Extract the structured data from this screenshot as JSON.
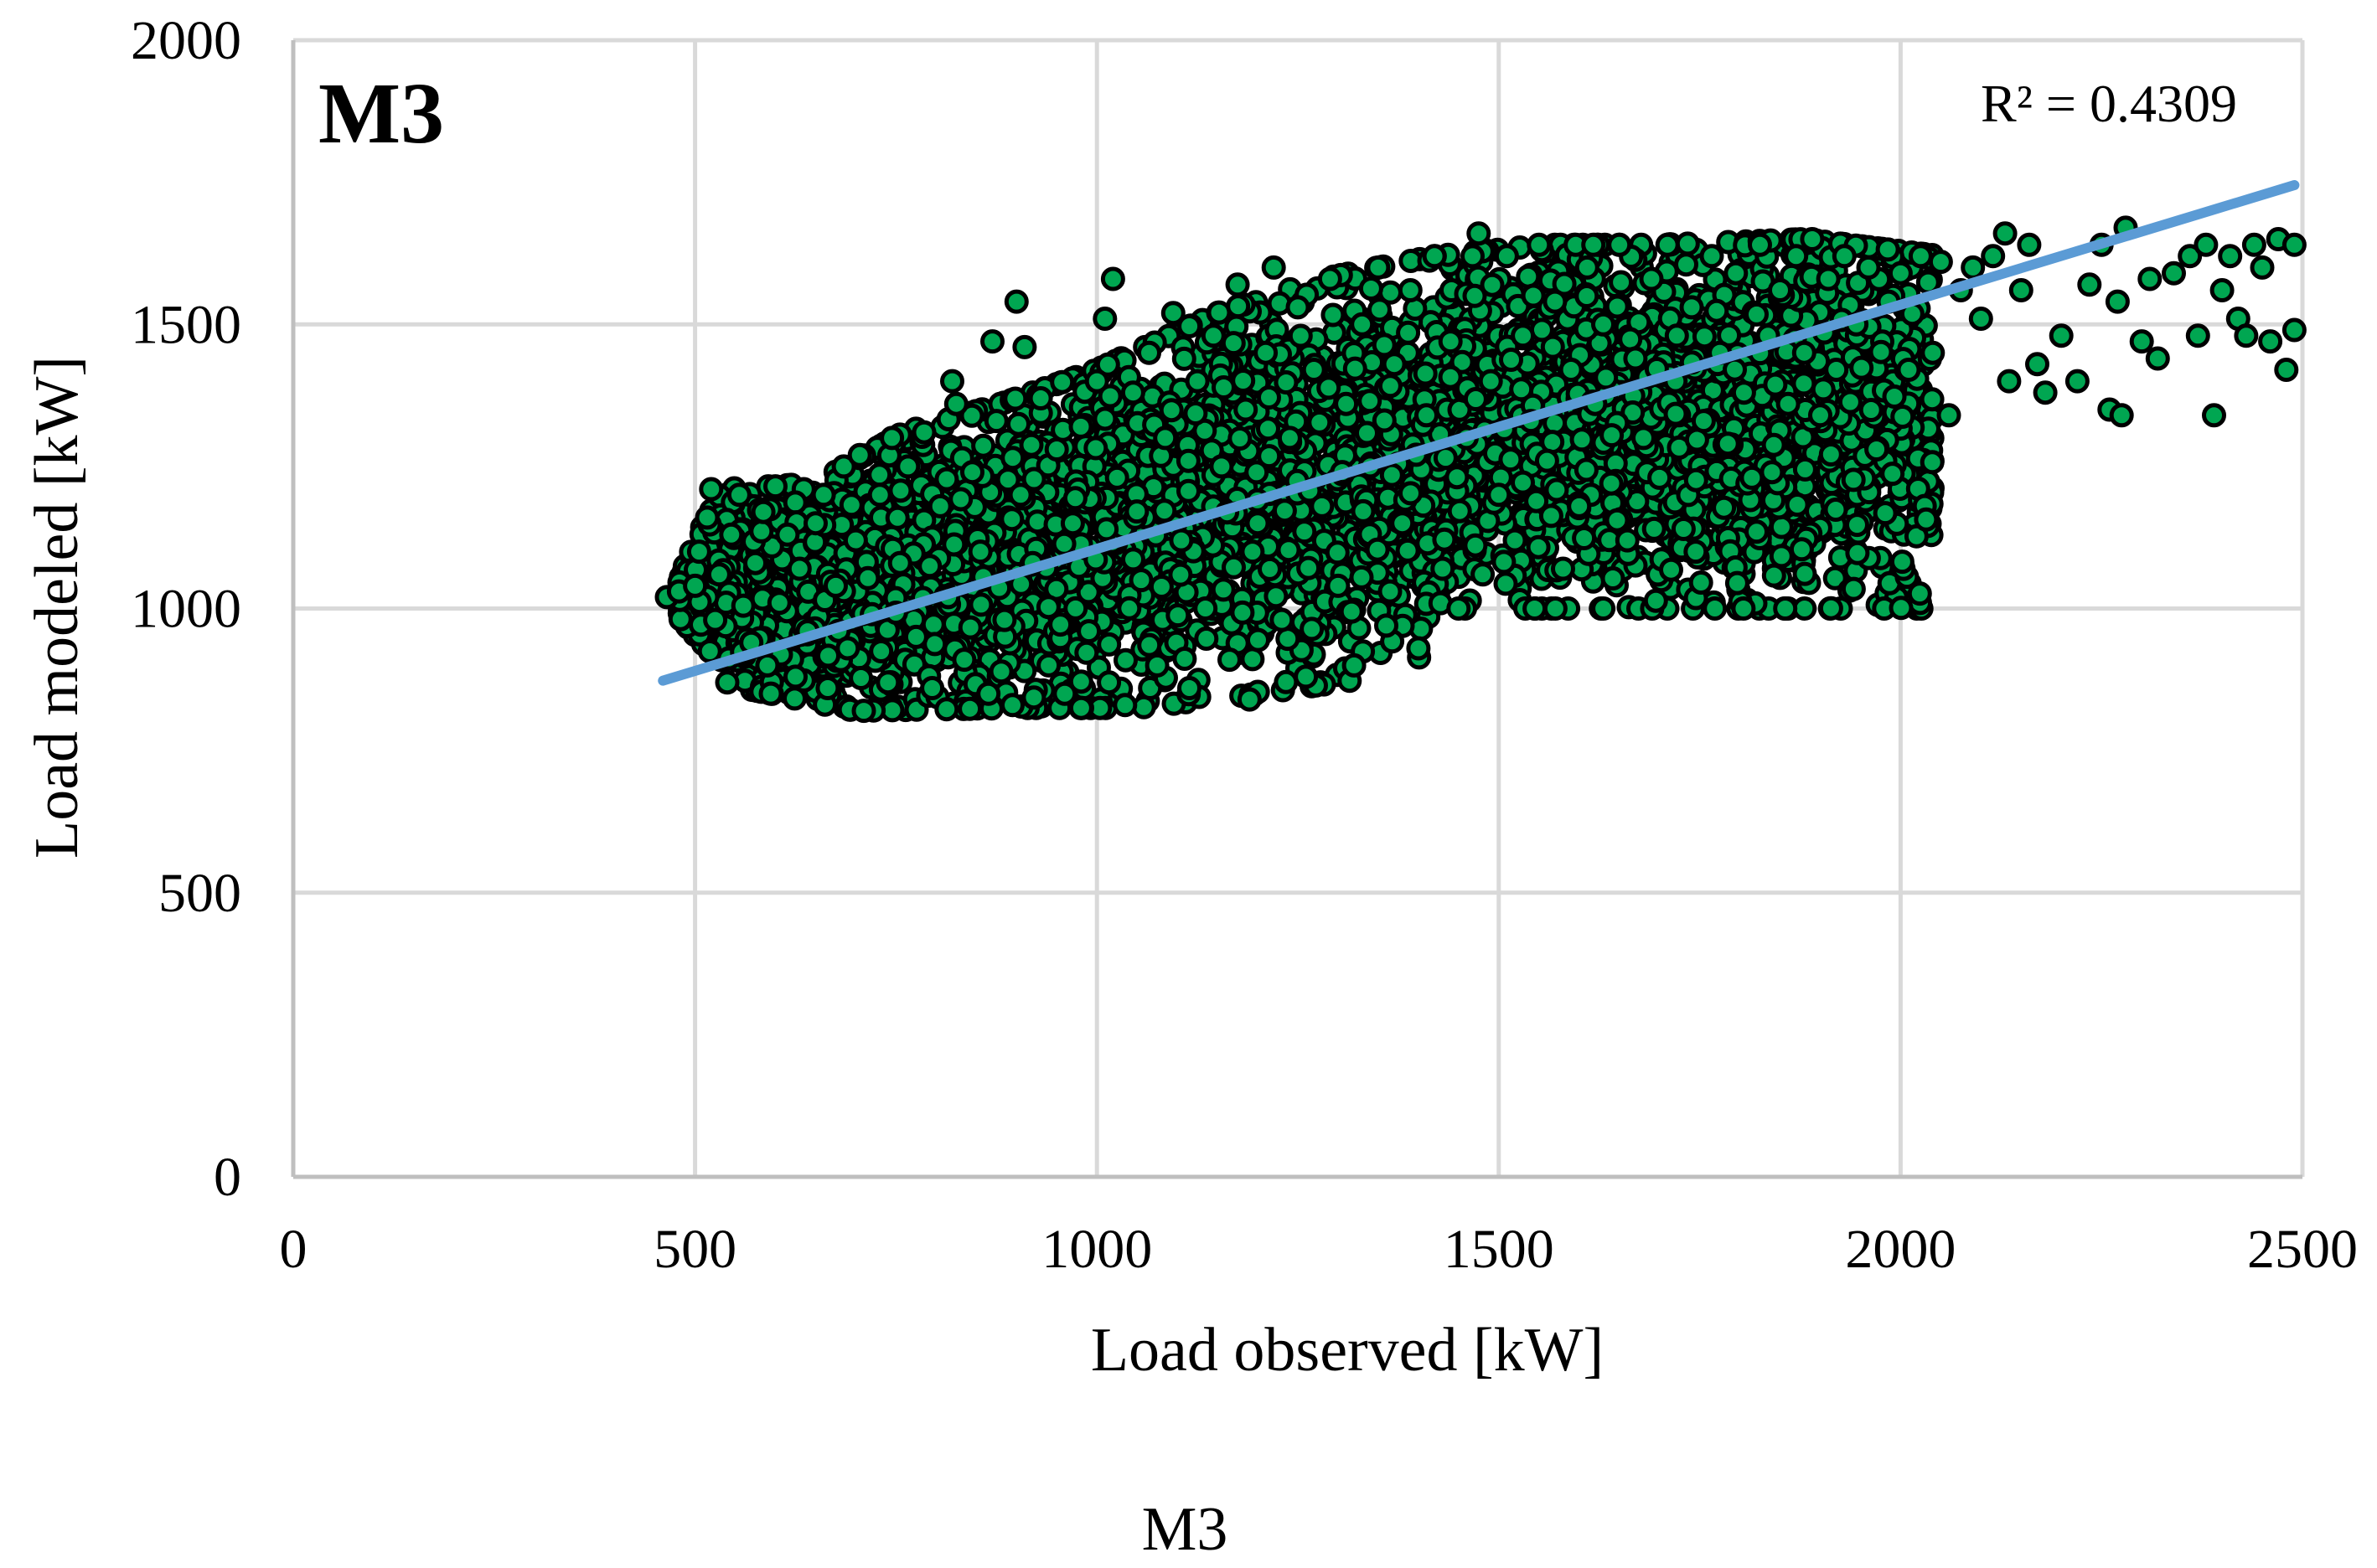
{
  "chart_data": {
    "type": "scatter",
    "title": "M3",
    "caption": "M3",
    "xlabel": "Load observed [kW]",
    "ylabel": "Load modeled [kW]",
    "xlim": [
      0,
      2500
    ],
    "ylim": [
      0,
      2000
    ],
    "xticks": [
      0,
      500,
      1000,
      1500,
      2000,
      2500
    ],
    "yticks": [
      0,
      500,
      1000,
      1500,
      2000
    ],
    "x_tick_labels": [
      "0",
      "500",
      "1000",
      "1500",
      "2000",
      "2500"
    ],
    "y_tick_labels": [
      "0",
      "500",
      "1000",
      "1500",
      "2000"
    ],
    "grid": true,
    "legend": "none",
    "r2_label": "R² = 0.4309",
    "trendline": {
      "type": "linear",
      "x": [
        460,
        2490
      ],
      "y": [
        873,
        1745
      ],
      "r_squared": 0.4309,
      "color": "#5b9bd5"
    },
    "series": [
      {
        "marker_fill": "#00a651",
        "marker_edge": "#000000",
        "description_of_cloud": {
          "lower_edge": [
            [
              470,
              1000
            ],
            [
              560,
              860
            ],
            [
              700,
              820
            ],
            [
              900,
              825
            ],
            [
              1050,
              825
            ],
            [
              1200,
              850
            ],
            [
              1350,
              880
            ],
            [
              1410,
              920
            ],
            [
              1440,
              1000
            ]
          ],
          "upper_edge": [
            [
              470,
              1020
            ],
            [
              530,
              1210
            ],
            [
              650,
              1220
            ],
            [
              760,
              1310
            ],
            [
              880,
              1360
            ],
            [
              1000,
              1420
            ],
            [
              1150,
              1520
            ],
            [
              1280,
              1580
            ],
            [
              1420,
              1620
            ],
            [
              1560,
              1640
            ],
            [
              1700,
              1640
            ],
            [
              1880,
              1650
            ],
            [
              2050,
              1620
            ],
            [
              2200,
              1640
            ],
            [
              2480,
              1640
            ]
          ]
        },
        "points": [
          [
            465,
            1020
          ],
          [
            480,
            1030
          ],
          [
            500,
            1040
          ],
          [
            505,
            1100
          ],
          [
            515,
            1160
          ],
          [
            520,
            1210
          ],
          [
            525,
            980
          ],
          [
            530,
            1060
          ],
          [
            540,
            870
          ],
          [
            545,
            1130
          ],
          [
            555,
            1200
          ],
          [
            560,
            1005
          ],
          [
            570,
            940
          ],
          [
            575,
            1080
          ],
          [
            585,
            1170
          ],
          [
            590,
            900
          ],
          [
            600,
            1215
          ],
          [
            605,
            1010
          ],
          [
            615,
            1130
          ],
          [
            625,
            880
          ],
          [
            630,
            1070
          ],
          [
            640,
            960
          ],
          [
            650,
            1150
          ],
          [
            660,
            1200
          ],
          [
            665,
            860
          ],
          [
            675,
            1040
          ],
          [
            685,
            1250
          ],
          [
            690,
            930
          ],
          [
            700,
            1120
          ],
          [
            705,
            1270
          ],
          [
            710,
            820
          ],
          [
            720,
            990
          ],
          [
            730,
            1200
          ],
          [
            740,
            870
          ],
          [
            745,
            1300
          ],
          [
            755,
            1080
          ],
          [
            765,
            1250
          ],
          [
            775,
            950
          ],
          [
            785,
            1310
          ],
          [
            795,
            860
          ],
          [
            805,
            1180
          ],
          [
            815,
            1020
          ],
          [
            820,
            1400
          ],
          [
            825,
            1360
          ],
          [
            835,
            910
          ],
          [
            845,
            1240
          ],
          [
            855,
            1100
          ],
          [
            865,
            850
          ],
          [
            870,
            1470
          ],
          [
            875,
            1330
          ],
          [
            885,
            980
          ],
          [
            895,
            830
          ],
          [
            900,
            1540
          ],
          [
            905,
            1200
          ],
          [
            910,
            1460
          ],
          [
            920,
            1080
          ],
          [
            930,
            1370
          ],
          [
            940,
            900
          ],
          [
            950,
            1280
          ],
          [
            960,
            850
          ],
          [
            970,
            1150
          ],
          [
            980,
            1320
          ],
          [
            990,
            960
          ],
          [
            1000,
            1400
          ],
          [
            1010,
            1510
          ],
          [
            1015,
            870
          ],
          [
            1020,
            1580
          ],
          [
            1025,
            1230
          ],
          [
            1035,
            830
          ],
          [
            1045,
            1380
          ],
          [
            1055,
            1050
          ],
          [
            1065,
            1450
          ],
          [
            1075,
            900
          ],
          [
            1085,
            1300
          ],
          [
            1095,
            1520
          ],
          [
            1105,
            1120
          ],
          [
            1115,
            860
          ],
          [
            1125,
            1400
          ],
          [
            1135,
            1000
          ],
          [
            1145,
            1480
          ],
          [
            1155,
            1250
          ],
          [
            1165,
            910
          ],
          [
            1175,
            1570
          ],
          [
            1185,
            1350
          ],
          [
            1190,
            840
          ],
          [
            1200,
            1150
          ],
          [
            1210,
            1450
          ],
          [
            1220,
            1600
          ],
          [
            1230,
            980
          ],
          [
            1240,
            1300
          ],
          [
            1250,
            1530
          ],
          [
            1260,
            880
          ],
          [
            1270,
            1420
          ],
          [
            1280,
            1180
          ],
          [
            1290,
            1580
          ],
          [
            1300,
            1040
          ],
          [
            1310,
            1360
          ],
          [
            1320,
            900
          ],
          [
            1330,
            1500
          ],
          [
            1340,
            1250
          ],
          [
            1350,
            1600
          ],
          [
            1360,
            970
          ],
          [
            1370,
            1430
          ],
          [
            1380,
            1150
          ],
          [
            1390,
            1560
          ],
          [
            1400,
            930
          ],
          [
            1410,
            1340
          ],
          [
            1420,
            1620
          ],
          [
            1430,
            1070
          ],
          [
            1440,
            1470
          ],
          [
            1450,
            1000
          ],
          [
            1460,
            1300
          ],
          [
            1470,
            1550
          ],
          [
            1475,
            1660
          ],
          [
            1480,
            1060
          ],
          [
            1490,
            1400
          ],
          [
            1500,
            1200
          ],
          [
            1510,
            1620
          ],
          [
            1520,
            1120
          ],
          [
            1530,
            1480
          ],
          [
            1540,
            1330
          ],
          [
            1550,
            1640
          ],
          [
            1560,
            1260
          ],
          [
            1570,
            1540
          ],
          [
            1580,
            1070
          ],
          [
            1590,
            1420
          ],
          [
            1600,
            1180
          ],
          [
            1610,
            1600
          ],
          [
            1620,
            1360
          ],
          [
            1630,
            1500
          ],
          [
            1640,
            1220
          ],
          [
            1650,
            1640
          ],
          [
            1660,
            1120
          ],
          [
            1670,
            1440
          ],
          [
            1680,
            1300
          ],
          [
            1690,
            1580
          ],
          [
            1700,
            1230
          ],
          [
            1710,
            1640
          ],
          [
            1720,
            1400
          ],
          [
            1730,
            1140
          ],
          [
            1740,
            1530
          ],
          [
            1745,
            1100
          ],
          [
            1755,
            1330
          ],
          [
            1765,
            1620
          ],
          [
            1775,
            1450
          ],
          [
            1785,
            1290
          ],
          [
            1795,
            1590
          ],
          [
            1805,
            1380
          ],
          [
            1815,
            1230
          ],
          [
            1825,
            1640
          ],
          [
            1835,
            1480
          ],
          [
            1840,
            1240
          ],
          [
            1850,
            1560
          ],
          [
            1860,
            1360
          ],
          [
            1870,
            1620
          ],
          [
            1880,
            1450
          ],
          [
            1890,
            1650
          ],
          [
            1900,
            1340
          ],
          [
            1910,
            1580
          ],
          [
            1920,
            1420
          ],
          [
            1930,
            1620
          ],
          [
            1945,
            1500
          ],
          [
            1960,
            1600
          ],
          [
            1970,
            1280
          ],
          [
            1985,
            1540
          ],
          [
            2000,
            1590
          ],
          [
            2010,
            1420
          ],
          [
            2025,
            1620
          ],
          [
            2040,
            1450
          ],
          [
            2050,
            1610
          ],
          [
            2060,
            1340
          ],
          [
            2075,
            1560
          ],
          [
            2090,
            1600
          ],
          [
            2100,
            1510
          ],
          [
            2115,
            1620
          ],
          [
            2130,
            1660
          ],
          [
            2135,
            1400
          ],
          [
            2150,
            1560
          ],
          [
            2160,
            1640
          ],
          [
            2170,
            1430
          ],
          [
            2180,
            1380
          ],
          [
            2200,
            1480
          ],
          [
            2220,
            1400
          ],
          [
            2235,
            1570
          ],
          [
            2250,
            1640
          ],
          [
            2260,
            1350
          ],
          [
            2270,
            1540
          ],
          [
            2275,
            1340
          ],
          [
            2280,
            1670
          ],
          [
            2300,
            1470
          ],
          [
            2310,
            1580
          ],
          [
            2320,
            1440
          ],
          [
            2340,
            1590
          ],
          [
            2360,
            1620
          ],
          [
            2370,
            1480
          ],
          [
            2380,
            1640
          ],
          [
            2390,
            1340
          ],
          [
            2400,
            1560
          ],
          [
            2410,
            1620
          ],
          [
            2420,
            1510
          ],
          [
            2430,
            1480
          ],
          [
            2440,
            1640
          ],
          [
            2450,
            1600
          ],
          [
            2460,
            1470
          ],
          [
            2470,
            1650
          ],
          [
            2480,
            1420
          ],
          [
            2490,
            1640
          ],
          [
            2490,
            1490
          ]
        ]
      }
    ]
  }
}
